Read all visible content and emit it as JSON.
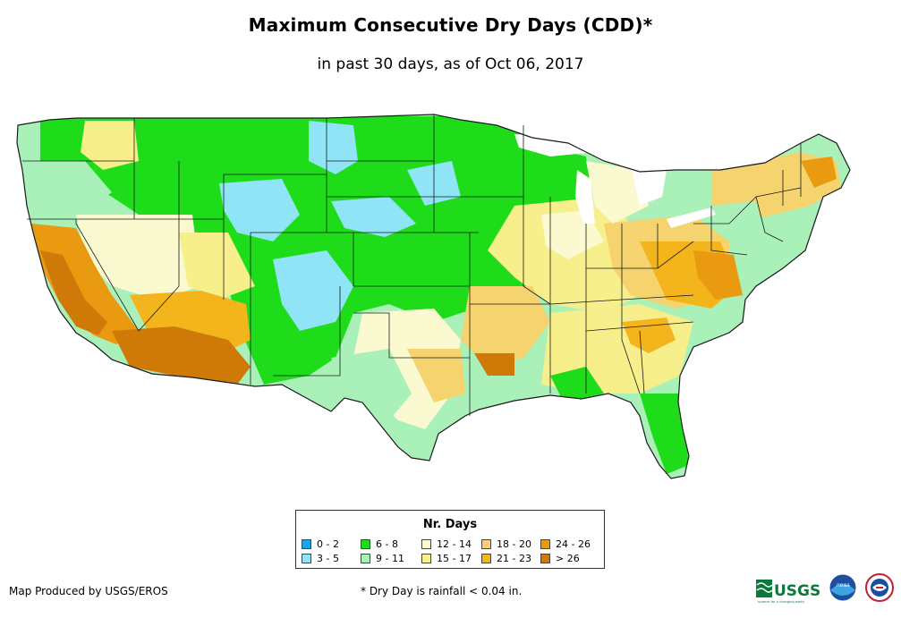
{
  "title": "Maximum Consecutive Dry Days (CDD)*",
  "subtitle": "in past 30 days, as of Oct 06, 2017",
  "legend": {
    "title": "Nr. Days",
    "items": [
      {
        "label": "0 - 2",
        "color": "#1aa3e8"
      },
      {
        "label": "3 - 5",
        "color": "#8fe4f6"
      },
      {
        "label": "6 - 8",
        "color": "#1fdc1a"
      },
      {
        "label": "9 - 11",
        "color": "#a9f0b9"
      },
      {
        "label": "12 - 14",
        "color": "#fbf9cf"
      },
      {
        "label": "15 - 17",
        "color": "#f7ee8c"
      },
      {
        "label": "18 - 20",
        "color": "#f5d36e"
      },
      {
        "label": "21 - 23",
        "color": "#f3b41c"
      },
      {
        "label": "24 - 26",
        "color": "#e99a10"
      },
      {
        "label": "> 26",
        "color": "#cf7a08"
      }
    ]
  },
  "footer": {
    "producer": "Map Produced by USGS/EROS",
    "note": "* Dry Day is rainfall < 0.04 in."
  },
  "logos": {
    "usgs": "USGS",
    "usgs_tagline": "science for a changing world",
    "noaa": "noaa"
  }
}
